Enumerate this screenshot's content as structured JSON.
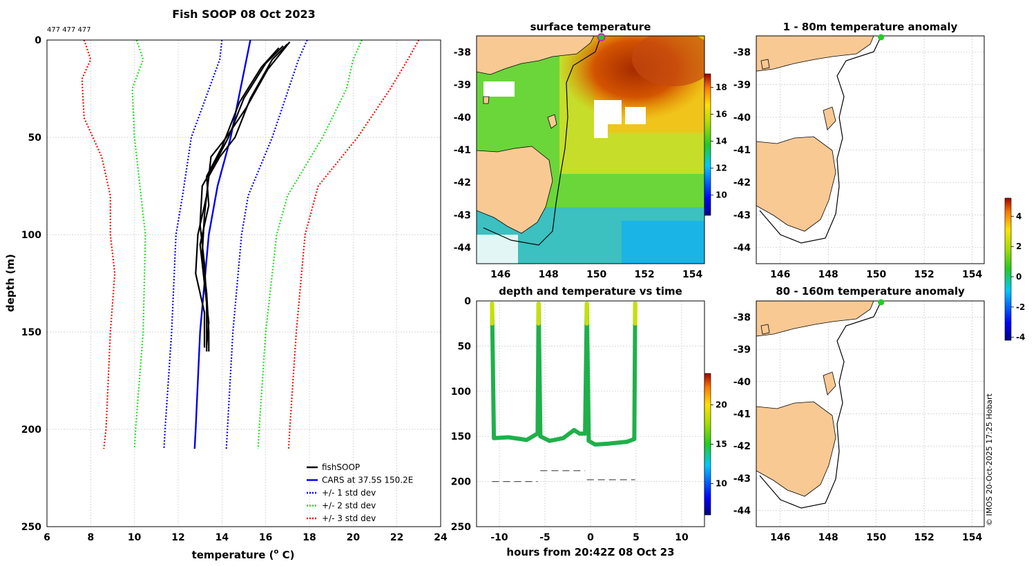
{
  "figure": {
    "main_title": "Fish SOOP 08 Oct 2023",
    "profile_ids": "477 477 477",
    "credit": "© IMOS 20-Oct-2025 17:25 Hobart"
  },
  "chart_data": [
    {
      "id": "profile",
      "type": "line",
      "title": "Fish SOOP 08 Oct 2023",
      "xlabel": "temperature (°C)",
      "xlabel_main": "temperature (",
      "xlabel_sup": "o",
      "xlabel_end": " C)",
      "ylabel": "depth (m)",
      "xlim": [
        6,
        24
      ],
      "ylim": [
        0,
        250
      ],
      "y_inverted": true,
      "xticks": [
        6,
        8,
        10,
        12,
        14,
        16,
        18,
        20,
        22,
        24
      ],
      "yticks": [
        0,
        50,
        100,
        150,
        200,
        250
      ],
      "grid": true,
      "legend_position": "bottom-right",
      "legend": [
        {
          "label": "fishSOOP",
          "color": "#000000",
          "style": "solid"
        },
        {
          "label": "CARS at 37.5S 150.2E",
          "color": "#0000ee",
          "style": "solid"
        },
        {
          "label": "+/- 1 std dev",
          "color": "#0000ee",
          "style": "dotted"
        },
        {
          "label": "+/- 2 std dev",
          "color": "#22dd22",
          "style": "dotted"
        },
        {
          "label": "+/- 3 std dev",
          "color": "#ee1100",
          "style": "dotted"
        }
      ],
      "series": [
        {
          "name": "CARS",
          "color": "#0000ee",
          "style": "solid",
          "depth": [
            0,
            50,
            75,
            100,
            150,
            200,
            210
          ],
          "temperature": [
            15.3,
            14.4,
            13.8,
            13.4,
            13.0,
            12.8,
            12.75
          ]
        },
        {
          "name": "-1 std dev",
          "color": "#0000ee",
          "style": "dotted",
          "depth": [
            0,
            10,
            50,
            80,
            100,
            150,
            200,
            210
          ],
          "temperature": [
            14.0,
            13.9,
            12.6,
            12.2,
            11.9,
            11.7,
            11.4,
            11.35
          ]
        },
        {
          "name": "+1 std dev",
          "color": "#0000ee",
          "style": "dotted",
          "depth": [
            0,
            10,
            50,
            80,
            100,
            150,
            200,
            210
          ],
          "temperature": [
            17.9,
            17.5,
            16.3,
            15.2,
            14.9,
            14.5,
            14.25,
            14.2
          ]
        },
        {
          "name": "-2 std dev",
          "color": "#22dd22",
          "style": "dotted",
          "depth": [
            0,
            10,
            25,
            50,
            100,
            150,
            200,
            210
          ],
          "temperature": [
            10.1,
            10.4,
            9.9,
            10.0,
            10.5,
            10.4,
            10.05,
            10.0
          ]
        },
        {
          "name": "+2 std dev",
          "color": "#22dd22",
          "style": "dotted",
          "depth": [
            0,
            10,
            25,
            50,
            80,
            100,
            150,
            200,
            210
          ],
          "temperature": [
            20.4,
            20.0,
            19.7,
            18.6,
            17.0,
            16.5,
            16.0,
            15.7,
            15.65
          ]
        },
        {
          "name": "-3 std dev",
          "color": "#ee1100",
          "style": "dotted",
          "depth": [
            0,
            10,
            20,
            40,
            60,
            80,
            100,
            120,
            150,
            200,
            210
          ],
          "temperature": [
            7.7,
            8.0,
            7.6,
            7.7,
            8.5,
            8.9,
            8.9,
            9.1,
            8.9,
            8.7,
            8.6
          ]
        },
        {
          "name": "+3 std dev",
          "color": "#ee1100",
          "style": "dotted",
          "depth": [
            0,
            10,
            25,
            50,
            75,
            100,
            150,
            200,
            210
          ],
          "temperature": [
            23.0,
            22.5,
            21.7,
            20.2,
            18.4,
            17.8,
            17.4,
            17.1,
            17.05
          ]
        },
        {
          "name": "fishSOOP cast 1",
          "color": "#000000",
          "style": "solid",
          "depth": [
            2,
            10,
            30,
            50,
            60,
            70,
            90,
            110,
            130,
            150,
            160
          ],
          "temperature": [
            17.0,
            16.3,
            15.3,
            14.6,
            13.9,
            13.4,
            13.2,
            13.1,
            13.3,
            13.4,
            13.4
          ]
        },
        {
          "name": "fishSOOP cast 2",
          "color": "#000000",
          "style": "solid",
          "depth": [
            3,
            12,
            30,
            50,
            65,
            75,
            95,
            115,
            135,
            155,
            160
          ],
          "temperature": [
            16.8,
            16.0,
            15.0,
            14.3,
            13.6,
            13.1,
            13.0,
            13.2,
            13.3,
            13.3,
            13.3
          ]
        },
        {
          "name": "fishSOOP cast 3",
          "color": "#000000",
          "style": "solid",
          "depth": [
            1,
            15,
            35,
            50,
            60,
            80,
            100,
            120,
            140,
            158
          ],
          "temperature": [
            17.1,
            16.1,
            15.1,
            14.2,
            13.5,
            13.3,
            12.9,
            12.8,
            13.2,
            13.2
          ]
        },
        {
          "name": "fishSOOP cast 4",
          "color": "#000000",
          "style": "solid",
          "depth": [
            4,
            14,
            32,
            55,
            70,
            85,
            105,
            125,
            145,
            157
          ],
          "temperature": [
            16.6,
            15.8,
            14.8,
            14.0,
            13.3,
            13.4,
            13.0,
            13.2,
            13.4,
            13.3
          ]
        }
      ]
    },
    {
      "id": "sst_map",
      "type": "heatmap",
      "title": "surface temperature",
      "xlim": [
        145,
        154.5
      ],
      "ylim": [
        -44.5,
        -37.5
      ],
      "xticks": [
        146,
        148,
        150,
        152,
        154
      ],
      "yticks": [
        -38,
        -39,
        -40,
        -41,
        -42,
        -43,
        -44
      ],
      "colorbar": {
        "min": 8.5,
        "max": 19,
        "ticks": [
          10,
          12,
          14,
          16,
          18
        ]
      },
      "marker": {
        "lon": 150.2,
        "lat": -37.5
      }
    },
    {
      "id": "depth_time",
      "type": "scatter",
      "title": "depth and temperature vs time",
      "xlabel": "hours from 20:42Z 08 Oct 23",
      "xlim": [
        -12.5,
        12.5
      ],
      "ylim": [
        0,
        250
      ],
      "y_inverted": true,
      "xticks": [
        -10,
        -5,
        0,
        5,
        10
      ],
      "yticks": [
        0,
        50,
        100,
        150,
        200,
        250
      ],
      "colorbar": {
        "min": 6,
        "max": 24,
        "ticks": [
          10,
          15,
          20
        ]
      },
      "track": {
        "hours": [
          -10.8,
          -10.6,
          -9.0,
          -7.0,
          -6.0,
          -5.8,
          -5.7,
          -5.5,
          -4.5,
          -3.0,
          -1.8,
          -1.2,
          -0.6,
          -0.4,
          -0.2,
          0.5,
          2.0,
          4.0,
          4.8,
          4.9
        ],
        "depth": [
          3,
          152,
          151,
          154,
          148,
          147,
          3,
          150,
          155,
          152,
          143,
          147,
          147,
          3,
          155,
          159,
          158,
          156,
          153,
          3
        ]
      },
      "dashes": [
        {
          "x0": -10.8,
          "x1": -5.8,
          "depth": 200
        },
        {
          "x0": -5.5,
          "x1": -0.6,
          "depth": 188
        },
        {
          "x0": -0.4,
          "x1": 4.9,
          "depth": 198
        }
      ]
    },
    {
      "id": "anom_1_80",
      "type": "heatmap",
      "title": "1 - 80m temperature anomaly",
      "xlim": [
        145,
        154.5
      ],
      "ylim": [
        -44.5,
        -37.5
      ],
      "xticks": [
        146,
        148,
        150,
        152,
        154
      ],
      "yticks": [
        -38,
        -39,
        -40,
        -41,
        -42,
        -43,
        -44
      ],
      "marker": {
        "lon": 150.2,
        "lat": -37.5
      }
    },
    {
      "id": "anom_80_160",
      "type": "heatmap",
      "title": "80 - 160m temperature anomaly",
      "xlim": [
        145,
        154.5
      ],
      "ylim": [
        -44.5,
        -37.5
      ],
      "xticks": [
        146,
        148,
        150,
        152,
        154
      ],
      "yticks": [
        -38,
        -39,
        -40,
        -41,
        -42,
        -43,
        -44
      ],
      "marker": {
        "lon": 150.2,
        "lat": -37.5
      }
    },
    {
      "id": "anomaly_colorbar",
      "type": "heatmap",
      "colorbar": {
        "min": -4.2,
        "max": 5.2,
        "ticks": [
          -4,
          -2,
          0,
          2,
          4
        ]
      }
    }
  ],
  "colors": {
    "land": "#f9c994",
    "marker_green": "#22cc22",
    "marker_magenta": "#cc22cc",
    "sst_warm": "#c1440e",
    "sst_green": "#22bb33"
  }
}
